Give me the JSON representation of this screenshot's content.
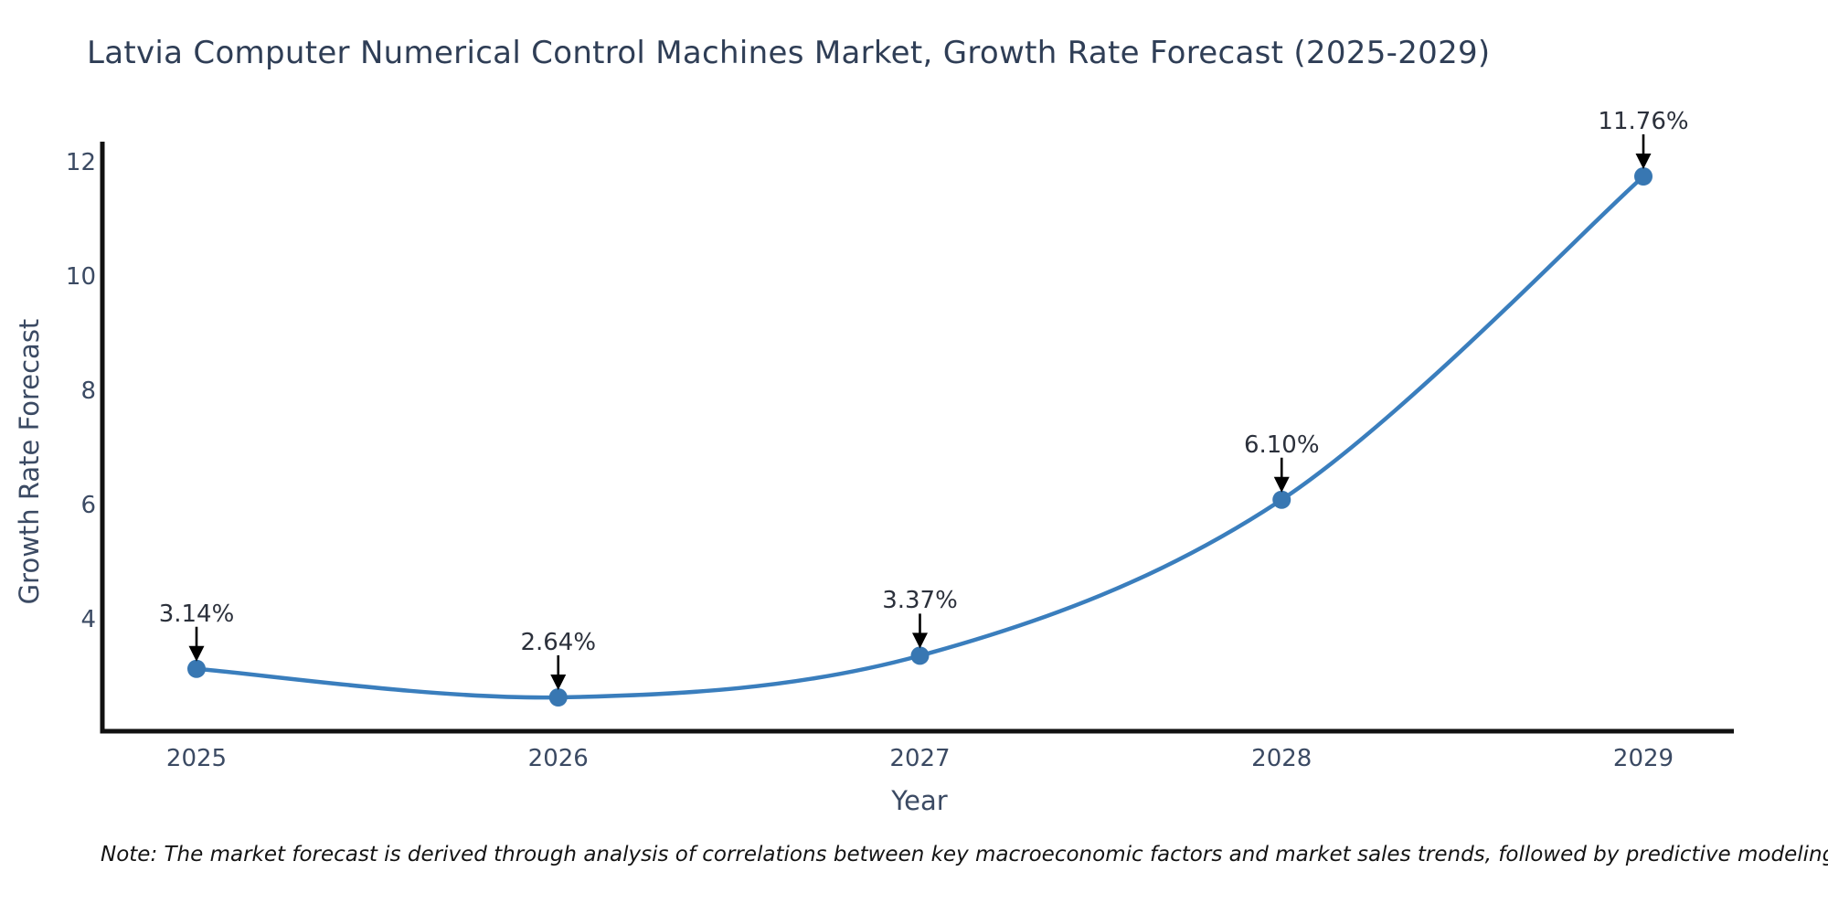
{
  "note": "Note: The market forecast is derived through analysis of correlations between key macroeconomic factors and market sales trends, followed by predictive modeling to project future sales",
  "chart_data": {
    "type": "line",
    "title": "Latvia Computer Numerical Control Machines Market, Growth Rate Forecast (2025-2029)",
    "xlabel": "Year",
    "ylabel": "Growth Rate Forecast",
    "categories": [
      "2025",
      "2026",
      "2027",
      "2028",
      "2029"
    ],
    "values": [
      3.14,
      2.64,
      3.37,
      6.1,
      11.76
    ],
    "point_labels": [
      "3.14%",
      "2.64%",
      "3.37%",
      "6.10%",
      "11.76%"
    ],
    "yticks": [
      4,
      6,
      8,
      10,
      12
    ],
    "ylim": [
      2.0,
      12.35
    ],
    "grid": false,
    "legend": "none",
    "marker": "circle-with-down-arrow-annotation",
    "colors": {
      "line": "#3a7ebd",
      "marker": "#3877b2",
      "axis": "#111111",
      "tick_text": "#3b4a63",
      "title_text": "#2f3e56",
      "annotation_text": "#2b303b",
      "arrow": "#000000",
      "background": "#ffffff"
    }
  }
}
